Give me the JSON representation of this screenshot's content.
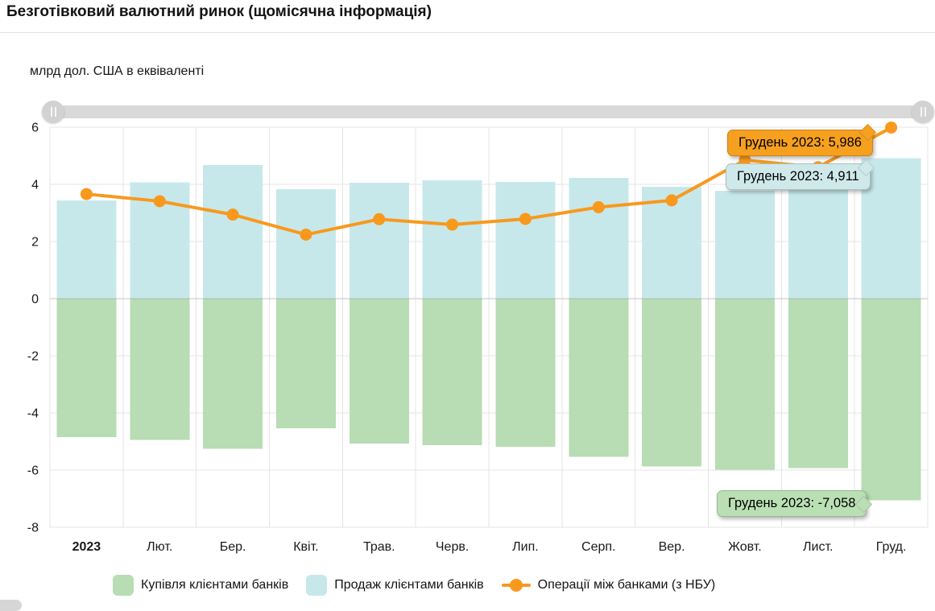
{
  "header": {
    "title": "Безготівковий валютний ринок (щомісячна інформація)"
  },
  "chart_data": {
    "type": "combo-bar-line",
    "units_label": "млрд дол. США в еквіваленті",
    "categories": [
      "2023",
      "Лют.",
      "Бер.",
      "Квіт.",
      "Трав.",
      "Черв.",
      "Лип.",
      "Серп.",
      "Вер.",
      "Жовт.",
      "Лист.",
      "Груд."
    ],
    "series": [
      {
        "name": "Купівля клієнтами банків",
        "type": "bar",
        "color": "#b8dcb3",
        "values": [
          -4.84,
          -4.95,
          -5.25,
          -4.53,
          -5.07,
          -5.13,
          -5.19,
          -5.54,
          -5.88,
          -5.99,
          -5.93,
          -7.058
        ]
      },
      {
        "name": "Продаж клієнтами банків",
        "type": "bar",
        "color": "#c7e8eb",
        "values": [
          3.44,
          4.07,
          4.68,
          3.83,
          4.05,
          4.14,
          4.08,
          4.23,
          3.91,
          3.77,
          3.88,
          4.911
        ]
      },
      {
        "name": "Операції між банками (з НБУ)",
        "type": "line",
        "color": "#f8991d",
        "values": [
          3.66,
          3.41,
          2.94,
          2.24,
          2.78,
          2.59,
          2.79,
          3.2,
          3.44,
          4.85,
          4.6,
          5.986
        ]
      }
    ],
    "y_axis": {
      "ticks": [
        6,
        4,
        2,
        0,
        -2,
        -4,
        -6,
        -8
      ],
      "min": -8,
      "max": 6
    },
    "grid": true,
    "legend_position": "bottom",
    "highlighted_month": "Грудень 2023"
  },
  "tooltips": [
    {
      "id": "interbank",
      "label": "Грудень 2023: 5,986",
      "bg": "#f6a01f"
    },
    {
      "id": "sales",
      "label": "Грудень 2023: 4,911",
      "bg": "#cfe9eb"
    },
    {
      "id": "purchases",
      "label": "Грудень 2023: -7,058",
      "bg": "#bbdfb5"
    }
  ]
}
